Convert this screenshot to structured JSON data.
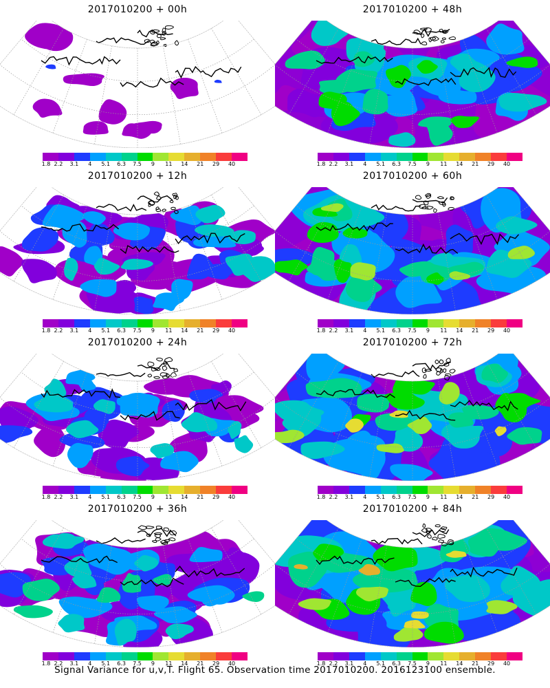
{
  "panels": [
    {
      "title": "2017010200 + 00h",
      "intensity": 0,
      "seed": 11
    },
    {
      "title": "2017010200 + 48h",
      "intensity": 3,
      "seed": 23
    },
    {
      "title": "2017010200 + 12h",
      "intensity": 1,
      "seed": 37
    },
    {
      "title": "2017010200 + 60h",
      "intensity": 4,
      "seed": 41
    },
    {
      "title": "2017010200 + 24h",
      "intensity": 1,
      "seed": 53
    },
    {
      "title": "2017010200 + 72h",
      "intensity": 5,
      "seed": 67
    },
    {
      "title": "2017010200 + 36h",
      "intensity": 2,
      "seed": 79
    },
    {
      "title": "2017010200 + 84h",
      "intensity": 6,
      "seed": 83
    }
  ],
  "colorbar": {
    "labels": [
      "1.8",
      "2.2",
      "3.1",
      "4",
      "5.1",
      "6.3",
      "7.5",
      "9",
      "11",
      "14",
      "21",
      "29",
      "40"
    ],
    "colors": [
      "#a000c8",
      "#8200dc",
      "#1e3cff",
      "#00a0ff",
      "#00c8c8",
      "#00d28c",
      "#00dc00",
      "#a0e632",
      "#e6dc32",
      "#e6af2d",
      "#f08228",
      "#fa3c3c",
      "#f00082"
    ]
  },
  "footer": "Signal Variance for u,v,T. Flight 65. Observation time 2017010200. 2016123100 ensemble."
}
